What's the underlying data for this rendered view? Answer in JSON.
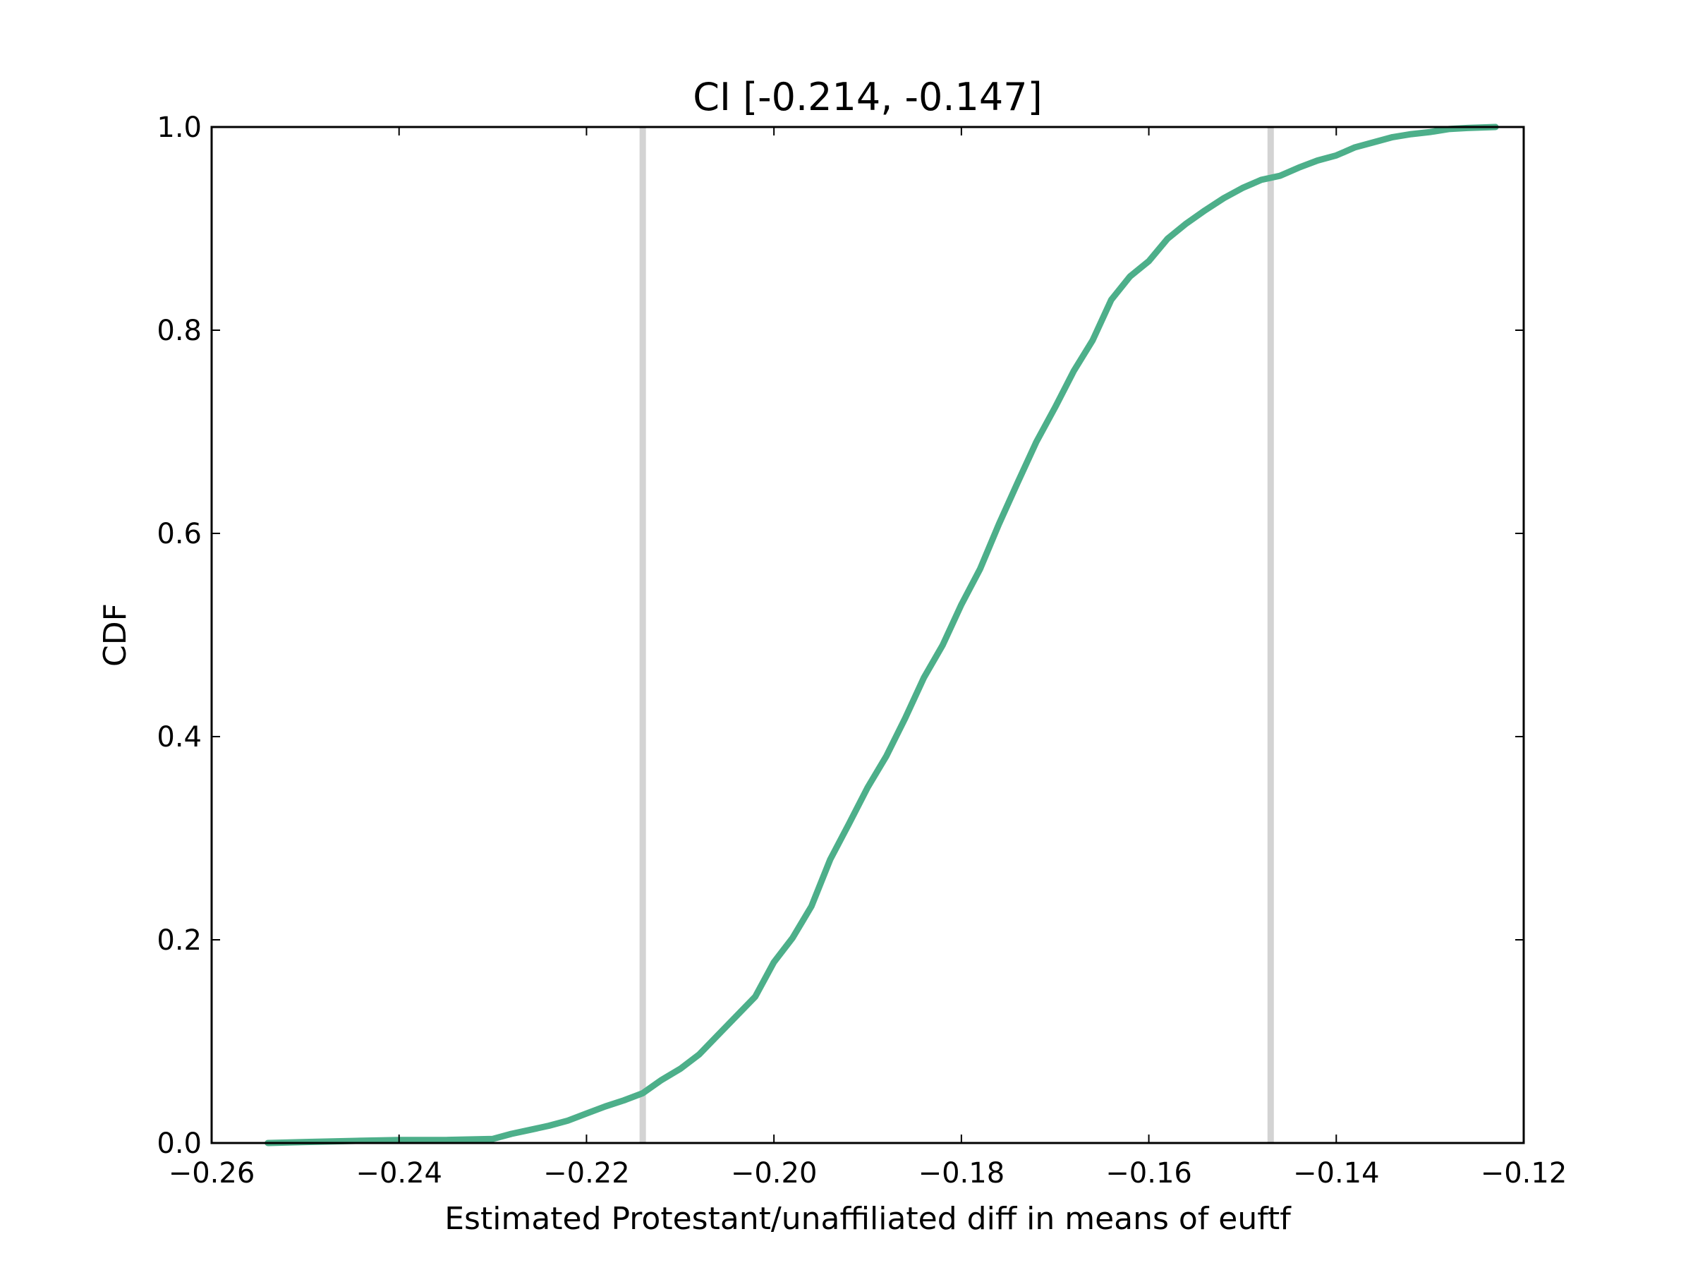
{
  "chart_data": {
    "type": "line",
    "title": "CI [-0.214, -0.147]",
    "xlabel": "Estimated Protestant/unaffiliated diff in means of euftf",
    "ylabel": "CDF",
    "xlim": [
      -0.26,
      -0.12
    ],
    "ylim": [
      0.0,
      1.0
    ],
    "xticks": [
      -0.26,
      -0.24,
      -0.22,
      -0.2,
      -0.18,
      -0.16,
      -0.14,
      -0.12
    ],
    "xtick_labels": [
      "−0.26",
      "−0.24",
      "−0.22",
      "−0.20",
      "−0.18",
      "−0.16",
      "−0.14",
      "−0.12"
    ],
    "yticks": [
      0.0,
      0.2,
      0.4,
      0.6,
      0.8,
      1.0
    ],
    "ytick_labels": [
      "0.0",
      "0.2",
      "0.4",
      "0.6",
      "0.8",
      "1.0"
    ],
    "grid": false,
    "legend": "none",
    "vlines": [
      {
        "x": -0.214,
        "color": "#d3d3d3"
      },
      {
        "x": -0.147,
        "color": "#d3d3d3"
      }
    ],
    "series": [
      {
        "color": "#4daf8a",
        "x": [
          -0.254,
          -0.25,
          -0.245,
          -0.24,
          -0.235,
          -0.23,
          -0.228,
          -0.226,
          -0.224,
          -0.222,
          -0.22,
          -0.218,
          -0.216,
          -0.214,
          -0.212,
          -0.21,
          -0.208,
          -0.206,
          -0.204,
          -0.202,
          -0.2,
          -0.198,
          -0.196,
          -0.194,
          -0.192,
          -0.19,
          -0.188,
          -0.186,
          -0.184,
          -0.182,
          -0.18,
          -0.178,
          -0.176,
          -0.174,
          -0.172,
          -0.17,
          -0.168,
          -0.166,
          -0.164,
          -0.162,
          -0.16,
          -0.158,
          -0.156,
          -0.154,
          -0.152,
          -0.15,
          -0.148,
          -0.146,
          -0.144,
          -0.142,
          -0.14,
          -0.138,
          -0.136,
          -0.134,
          -0.132,
          -0.13,
          -0.128,
          -0.126,
          -0.123
        ],
        "y": [
          0.0,
          0.001,
          0.002,
          0.003,
          0.003,
          0.004,
          0.009,
          0.013,
          0.017,
          0.022,
          0.029,
          0.036,
          0.042,
          0.049,
          0.062,
          0.073,
          0.087,
          0.106,
          0.125,
          0.144,
          0.178,
          0.202,
          0.233,
          0.279,
          0.314,
          0.35,
          0.381,
          0.418,
          0.458,
          0.49,
          0.53,
          0.565,
          0.609,
          0.65,
          0.69,
          0.724,
          0.76,
          0.79,
          0.83,
          0.853,
          0.868,
          0.89,
          0.905,
          0.918,
          0.93,
          0.94,
          0.948,
          0.952,
          0.96,
          0.967,
          0.972,
          0.98,
          0.985,
          0.99,
          0.993,
          0.995,
          0.998,
          0.999,
          1.0
        ]
      }
    ]
  }
}
